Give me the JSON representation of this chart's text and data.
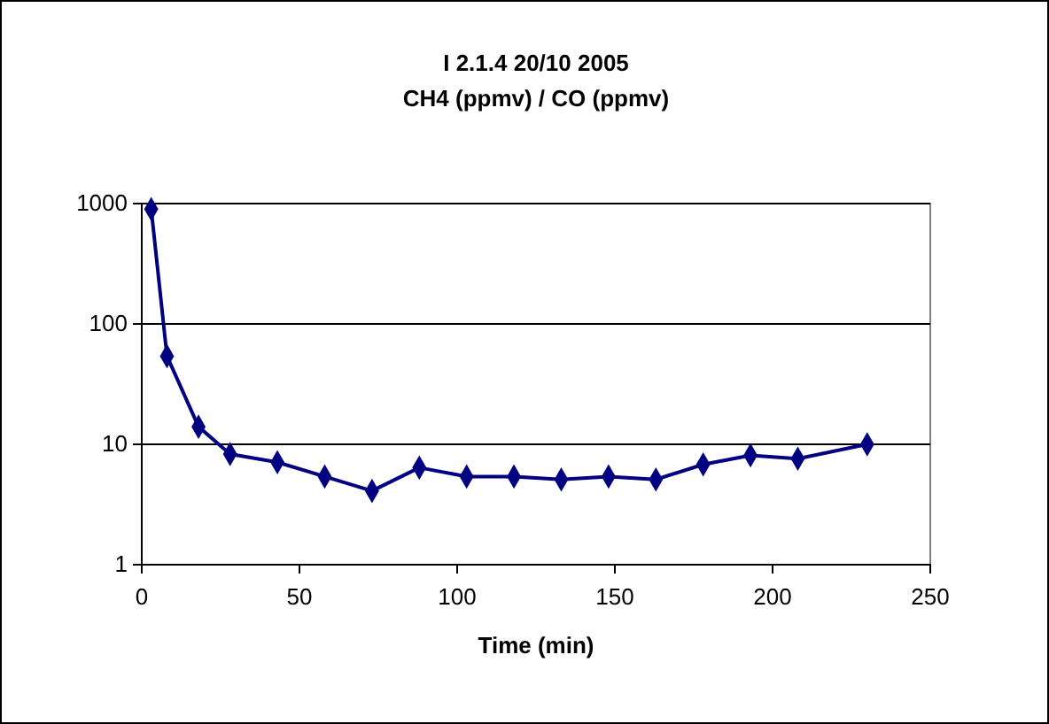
{
  "chart_data": {
    "type": "line",
    "title": "I 2.1.4 20/10 2005",
    "subtitle": "CH4 (ppmv) / CO (ppmv)",
    "xlabel": "Time (min)",
    "x": [
      3,
      8,
      18,
      28,
      43,
      58,
      73,
      88,
      103,
      118,
      133,
      148,
      163,
      178,
      193,
      208,
      230
    ],
    "series": [
      {
        "color": "#000080",
        "values": [
          900,
          54,
          14,
          8.3,
          7.1,
          5.4,
          4.1,
          6.4,
          5.4,
          5.4,
          5.1,
          5.4,
          5.1,
          6.8,
          8.1,
          7.6,
          10
        ]
      }
    ],
    "xlim": [
      0,
      250
    ],
    "xticks": [
      0,
      50,
      100,
      150,
      200,
      250
    ],
    "ylim": [
      1,
      1000
    ],
    "yticks": [
      1,
      10,
      100,
      1000
    ],
    "log": "y",
    "grid": "y",
    "marker": "diamond",
    "line_style": "solid"
  }
}
